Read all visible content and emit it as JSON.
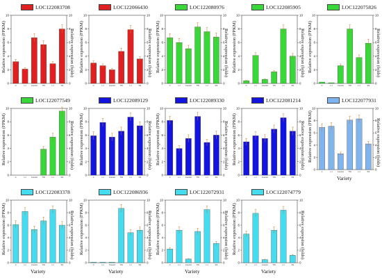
{
  "colors": {
    "red": "#e02020",
    "green": "#38d838",
    "blue": "#1414e0",
    "cyan": "#45dcf0",
    "lightblue": "#80b4ef",
    "axis": "#444444",
    "error": "#cc7722"
  },
  "chart_data": [
    {
      "type": "bar",
      "title": "LOC122083708",
      "color": "red",
      "ylabel": "Relative expression (FPKM)",
      "y2label": "Relative expression (folds)",
      "xlabel": "",
      "ylim": [
        0,
        10
      ],
      "y2lim": [
        0,
        10
      ],
      "categories": [
        "C",
        "LJ",
        "Control",
        "TW",
        "LJ",
        "SS"
      ],
      "values": [
        3.2,
        2.1,
        6.7,
        5.7,
        2.9,
        8.0
      ]
    },
    {
      "type": "bar",
      "title": "LOC122066430",
      "color": "red",
      "ylabel": "Relative expression (FPKM)",
      "y2label": "Relative expression (folds)",
      "xlabel": "",
      "ylim": [
        0,
        10
      ],
      "y2lim": [
        0,
        10
      ],
      "categories": [
        "C",
        "LJ",
        "Control",
        "TW",
        "LJ",
        "SS"
      ],
      "values": [
        3.0,
        2.6,
        2.0,
        4.7,
        7.9,
        3.6
      ]
    },
    {
      "type": "bar",
      "title": "LOC122080976",
      "color": "green",
      "ylabel": "Relative expression (FPKM)",
      "y2label": "Relative expression (folds)",
      "xlabel": "",
      "ylim": [
        0,
        10
      ],
      "y2lim": [
        0,
        10
      ],
      "categories": [
        "C",
        "LJ",
        "Control",
        "TW",
        "LJ",
        "SS"
      ],
      "values": [
        6.7,
        6.0,
        5.1,
        8.3,
        7.6,
        6.8
      ]
    },
    {
      "type": "bar",
      "title": "LOC122085905",
      "color": "green",
      "ylabel": "Relative expression (FPKM)",
      "y2label": "Relative expression (folds)",
      "xlabel": "",
      "ylim": [
        0,
        10
      ],
      "y2lim": [
        0,
        10
      ],
      "categories": [
        "C",
        "LJ",
        "Control",
        "TW",
        "LJ",
        "SS"
      ],
      "values": [
        0.4,
        4.1,
        0.6,
        1.7,
        8.0,
        4.0
      ]
    },
    {
      "type": "bar",
      "title": "LOC122075826",
      "color": "green",
      "ylabel": "Relative expression (FPKM)",
      "y2label": "Relative expression (folds)",
      "xlabel": "",
      "ylim": [
        0,
        10
      ],
      "y2lim": [
        0,
        10
      ],
      "categories": [
        "C",
        "LJ",
        "Control",
        "TW",
        "LJ",
        "SS"
      ],
      "values": [
        0.2,
        0.1,
        2.6,
        8.0,
        3.8,
        5.9
      ]
    },
    {
      "type": "bar",
      "title": "LOC122077549",
      "color": "green",
      "ylabel": "Relative expression (FPKM)",
      "y2label": "Relative expression (folds)",
      "xlabel": "",
      "ylim": [
        0,
        10
      ],
      "y2lim": [
        0,
        10
      ],
      "categories": [
        "C",
        "LJ",
        "Control",
        "TW",
        "LJ",
        "SS"
      ],
      "values": [
        0.0,
        0.0,
        0.0,
        3.9,
        5.7,
        9.6
      ]
    },
    {
      "type": "bar",
      "title": "LOC122089129",
      "color": "blue",
      "ylabel": "Relative expression (FPKM)",
      "y2label": "Relative expression (folds)",
      "xlabel": "",
      "ylim": [
        0,
        10
      ],
      "y2lim": [
        0,
        10
      ],
      "categories": [
        "C",
        "LJ",
        "Control",
        "TW",
        "LJ",
        "SS"
      ],
      "values": [
        5.9,
        7.9,
        5.7,
        6.6,
        8.7,
        7.4
      ]
    },
    {
      "type": "bar",
      "title": "LOC122089330",
      "color": "blue",
      "ylabel": "Relative expression (FPKM)",
      "y2label": "Relative expression (folds)",
      "xlabel": "",
      "ylim": [
        0,
        10
      ],
      "y2lim": [
        0,
        10
      ],
      "categories": [
        "C",
        "LJ",
        "Control",
        "TW",
        "LJ",
        "SS"
      ],
      "values": [
        8.2,
        4.0,
        5.5,
        8.8,
        4.9,
        6.0
      ]
    },
    {
      "type": "bar",
      "title": "LOC122081214",
      "color": "blue",
      "ylabel": "Relative expression (FPKM)",
      "y2label": "Relative expression (folds)",
      "xlabel": "",
      "ylim": [
        0,
        10
      ],
      "y2lim": [
        0,
        10
      ],
      "categories": [
        "C",
        "LJ",
        "Control",
        "TW",
        "LJ",
        "SS"
      ],
      "values": [
        5.0,
        5.9,
        5.5,
        6.9,
        8.6,
        6.6
      ]
    },
    {
      "type": "bar",
      "title": "LOC122077931",
      "color": "lightblue",
      "ylabel": "Relative expression (FPKM)",
      "y2label": "Relative expression (folds)",
      "xlabel": "Variety",
      "ylim": [
        0,
        10
      ],
      "y2lim": [
        0,
        10
      ],
      "categories": [
        "C",
        "LJ",
        "Control",
        "TW",
        "LJ",
        "SS"
      ],
      "values": [
        6.9,
        7.1,
        2.6,
        8.1,
        8.3,
        4.2
      ]
    },
    {
      "type": "bar",
      "title": "LOC122083378",
      "color": "cyan",
      "ylabel": "Relative expression (FPKM)",
      "y2label": "Relative expression (folds)",
      "xlabel": "Variety",
      "ylim": [
        0,
        10
      ],
      "y2lim": [
        0,
        10
      ],
      "categories": [
        "C",
        "LJ",
        "Control",
        "TW",
        "LJ",
        "SS"
      ],
      "values": [
        6.1,
        8.2,
        5.3,
        6.7,
        8.5,
        6.0
      ]
    },
    {
      "type": "bar",
      "title": "LOC122086936",
      "color": "cyan",
      "ylabel": "Relative expression (FPKM)",
      "y2label": "Relative expression (folds)",
      "xlabel": "Variety",
      "ylim": [
        0,
        10
      ],
      "y2lim": [
        0,
        10
      ],
      "categories": [
        "C",
        "LJ",
        "Control",
        "TW",
        "LJ",
        "SS"
      ],
      "values": [
        0.1,
        0.1,
        0.1,
        8.7,
        4.8,
        5.2
      ]
    },
    {
      "type": "bar",
      "title": "LOC122072931",
      "color": "cyan",
      "ylabel": "Relative expression (FPKM)",
      "y2label": "Relative expression (folds)",
      "xlabel": "Variety",
      "ylim": [
        0,
        10
      ],
      "y2lim": [
        0,
        10
      ],
      "categories": [
        "C",
        "LJ",
        "Control",
        "TW",
        "LJ",
        "SS"
      ],
      "values": [
        2.2,
        5.2,
        0.6,
        5.0,
        8.5,
        3.1
      ]
    },
    {
      "type": "bar",
      "title": "LOC122074779",
      "color": "cyan",
      "ylabel": "Relative expression (FPKM)",
      "y2label": "Relative expression (folds)",
      "xlabel": "Variety",
      "ylim": [
        0,
        10
      ],
      "y2lim": [
        0,
        10
      ],
      "categories": [
        "C",
        "LJ",
        "Control",
        "TW",
        "LJ",
        "SS"
      ],
      "values": [
        4.6,
        7.9,
        0.5,
        5.2,
        8.4,
        1.2
      ]
    }
  ]
}
